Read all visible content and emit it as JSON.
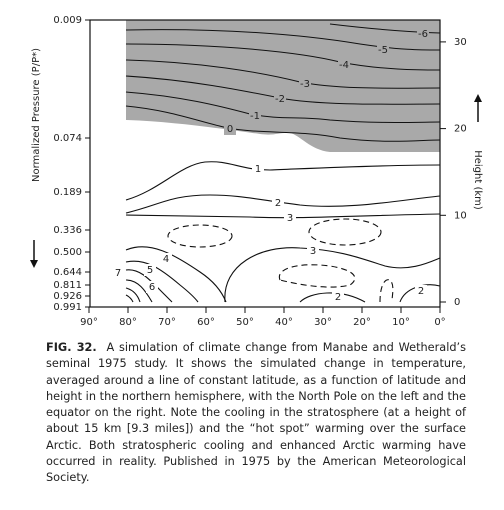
{
  "figure": {
    "y_label": "Normalized Pressure (P/P*)",
    "y2_label": "Height (km)",
    "pressure_ticks": [
      "0.009",
      "0.074",
      "0.189",
      "0.336",
      "0.500",
      "0.644",
      "0.811",
      "0.926",
      "0.991"
    ],
    "height_ticks": [
      0,
      10,
      20,
      30
    ],
    "latitude_ticks": [
      {
        "value": 90,
        "label": "90°"
      },
      {
        "value": 80,
        "label": "80°"
      },
      {
        "value": 70,
        "label": "70°"
      },
      {
        "value": 60,
        "label": "60°"
      },
      {
        "value": 50,
        "label": "50°"
      },
      {
        "value": 40,
        "label": "40°"
      },
      {
        "value": 30,
        "label": "30°"
      },
      {
        "value": 20,
        "label": "20°"
      },
      {
        "value": 10,
        "label": "10°"
      },
      {
        "value": 0,
        "label": "0°"
      }
    ],
    "contour_labels": [
      "-6",
      "-5",
      "-4",
      "-3",
      "-2",
      "-1",
      "0",
      "1",
      "2",
      "3",
      "3",
      "4",
      "5",
      "6",
      "7",
      "2",
      "2"
    ]
  },
  "caption": {
    "label": "FIG. 32.",
    "text": "A simulation of climate change from Manabe and Wetherald’s seminal 1975 study. It shows the simulated change in temperature, averaged around a line of constant latitude, as a function of latitude and height in the northern hemisphere, with the North Pole on the left and the equator on the right. Note the cooling in the stratosphere (at a height of about 15 km [9.3 miles]) and the “hot spot” warming over the surface Arctic. Both stratospheric cooling and enhanced Arctic warming have occurred in reality. Published in 1975 by the American Meteorological Society."
  }
}
